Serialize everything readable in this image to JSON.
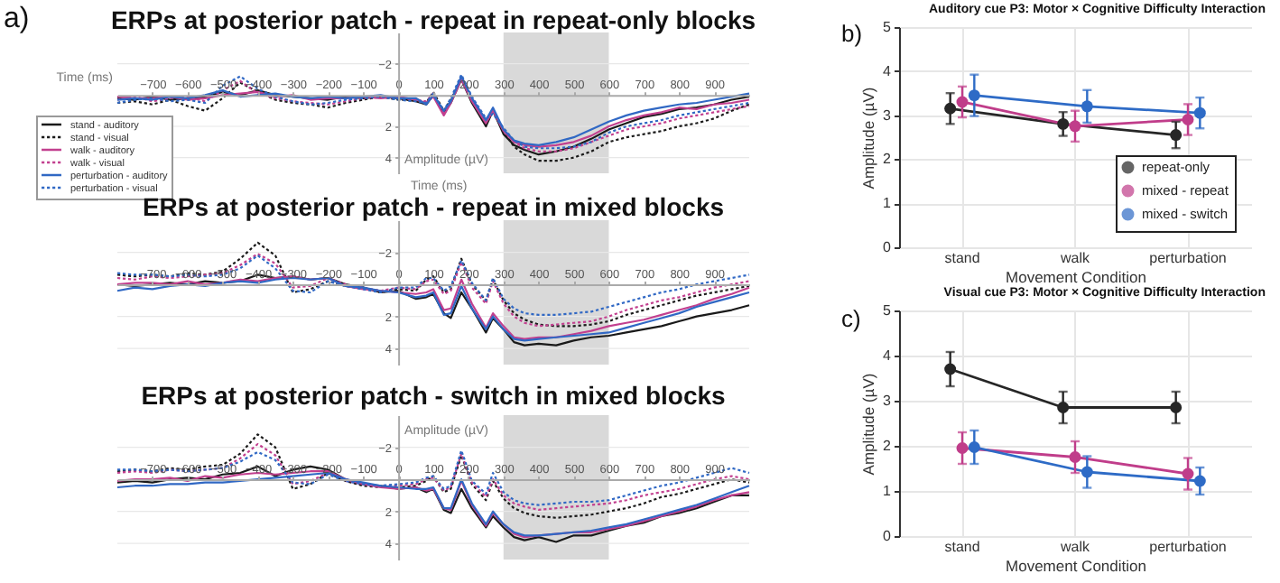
{
  "chart_data": [
    {
      "type": "line",
      "title": "ERPs at posterior patch - repeat in repeat-only blocks",
      "xlabel": "Time (ms)",
      "ylabel": "Amplitude (µV)",
      "x": [
        -800,
        -750,
        -700,
        -650,
        -600,
        -550,
        -500,
        -450,
        -400,
        -350,
        -300,
        -250,
        -200,
        -150,
        -100,
        -50,
        0,
        50,
        80,
        100,
        130,
        150,
        180,
        210,
        250,
        270,
        300,
        330,
        360,
        400,
        450,
        500,
        550,
        600,
        650,
        700,
        750,
        800,
        850,
        900,
        950,
        1000
      ],
      "series": [
        {
          "name": "stand - auditory",
          "color": "#1a1a1a",
          "line_style": "solid",
          "values": [
            0.2,
            0.3,
            0.1,
            0.3,
            0.2,
            0.1,
            -0.2,
            0.0,
            -0.3,
            0.0,
            0.1,
            0.2,
            0.3,
            0.1,
            0.2,
            0.1,
            0.2,
            0.4,
            0.6,
            0.0,
            1.2,
            0.5,
            -1.0,
            0.5,
            2.0,
            1.0,
            2.5,
            3.2,
            3.5,
            3.8,
            3.6,
            3.3,
            2.8,
            2.2,
            1.8,
            1.4,
            1.2,
            0.9,
            0.8,
            0.6,
            0.3,
            0.1
          ]
        },
        {
          "name": "stand - visual",
          "color": "#1a1a1a",
          "line_style": "dotted",
          "values": [
            0.5,
            0.4,
            0.6,
            0.3,
            0.7,
            1.0,
            0.2,
            -0.8,
            -0.2,
            0.3,
            0.5,
            0.6,
            0.8,
            0.5,
            0.3,
            0.1,
            0.3,
            0.3,
            0.5,
            -0.2,
            1.0,
            0.3,
            -1.1,
            0.3,
            1.8,
            1.0,
            2.3,
            3.3,
            3.8,
            4.2,
            4.2,
            4.0,
            3.6,
            3.0,
            2.7,
            2.5,
            2.3,
            2.0,
            1.8,
            1.5,
            1.0,
            0.6
          ]
        },
        {
          "name": "walk - auditory",
          "color": "#c2408f",
          "line_style": "solid",
          "values": [
            0.1,
            0.2,
            0.2,
            0.1,
            0.3,
            0.2,
            0.0,
            -0.1,
            -0.2,
            0.1,
            0.0,
            0.3,
            0.2,
            0.2,
            0.1,
            0.2,
            0.1,
            0.3,
            0.5,
            0.1,
            1.3,
            0.5,
            -1.0,
            0.4,
            1.8,
            1.0,
            2.3,
            3.0,
            3.2,
            3.3,
            3.2,
            3.0,
            2.6,
            2.0,
            1.6,
            1.3,
            1.1,
            0.8,
            0.9,
            0.6,
            0.5,
            0.3
          ]
        },
        {
          "name": "walk - visual",
          "color": "#c2408f",
          "line_style": "dotted",
          "values": [
            0.3,
            0.1,
            0.4,
            0.2,
            0.1,
            0.4,
            -0.3,
            -0.9,
            -0.1,
            0.2,
            0.4,
            0.5,
            0.6,
            0.4,
            0.2,
            0.1,
            0.2,
            0.3,
            0.4,
            -0.1,
            1.1,
            0.4,
            -1.1,
            0.2,
            1.6,
            0.9,
            2.2,
            3.0,
            3.4,
            3.6,
            3.6,
            3.4,
            3.0,
            2.6,
            2.2,
            2.0,
            1.8,
            1.5,
            1.3,
            1.1,
            0.9,
            0.7
          ]
        },
        {
          "name": "perturbation - auditory",
          "color": "#3068c4",
          "line_style": "solid",
          "values": [
            0.3,
            0.2,
            0.3,
            0.1,
            0.2,
            0.0,
            -0.3,
            0.1,
            0.0,
            -0.1,
            0.1,
            0.2,
            0.1,
            0.2,
            0.1,
            0.0,
            0.2,
            0.2,
            0.6,
            0.0,
            1.0,
            0.4,
            -1.2,
            0.2,
            1.6,
            0.8,
            2.2,
            2.9,
            3.1,
            3.2,
            3.0,
            2.7,
            2.2,
            1.7,
            1.3,
            1.0,
            0.8,
            0.6,
            0.5,
            0.3,
            0.1,
            -0.1
          ]
        },
        {
          "name": "perturbation - visual",
          "color": "#3068c4",
          "line_style": "dotted",
          "values": [
            0.5,
            0.3,
            0.2,
            0.4,
            0.3,
            0.5,
            -0.6,
            -1.2,
            -0.4,
            0.1,
            0.4,
            0.6,
            0.5,
            0.3,
            0.2,
            0.1,
            0.3,
            0.4,
            0.5,
            -0.1,
            1.0,
            0.2,
            -1.3,
            0.1,
            1.5,
            1.2,
            2.1,
            2.9,
            3.3,
            3.4,
            3.4,
            3.3,
            3.0,
            2.4,
            2.0,
            1.8,
            1.6,
            1.3,
            1.1,
            0.9,
            0.7,
            0.5
          ]
        }
      ],
      "xlim": [
        -800,
        1000
      ],
      "ylim": [
        5,
        -4
      ],
      "xticks": [
        -700,
        -600,
        -500,
        -400,
        -300,
        -200,
        -100,
        0,
        100,
        200,
        300,
        400,
        500,
        600,
        700,
        800,
        900
      ],
      "yticks": [
        -2,
        2,
        4
      ],
      "grid": "y",
      "bands": [
        {
          "axis": "x",
          "from": 300,
          "to": 600,
          "color": "#d9d9d9"
        }
      ],
      "legend": "bottom left",
      "annotations": [
        "a)"
      ]
    },
    {
      "type": "line",
      "title": "ERPs at posterior patch - repeat in mixed blocks",
      "xlabel": "Time (ms)",
      "x": [
        -800,
        -750,
        -700,
        -650,
        -600,
        -550,
        -500,
        -450,
        -400,
        -350,
        -300,
        -250,
        -200,
        -150,
        -100,
        -50,
        0,
        50,
        80,
        100,
        130,
        150,
        180,
        210,
        250,
        270,
        300,
        330,
        360,
        400,
        450,
        500,
        550,
        600,
        650,
        700,
        750,
        800,
        850,
        900,
        950,
        1000
      ],
      "series": [
        {
          "color": "#1a1a1a",
          "line_style": "solid",
          "values": [
            0.0,
            0.1,
            0.0,
            -0.1,
            0.0,
            -0.2,
            -0.1,
            -0.2,
            -0.6,
            -0.4,
            -0.5,
            -0.3,
            -0.4,
            0.0,
            0.2,
            0.5,
            0.4,
            0.9,
            0.8,
            0.6,
            1.8,
            2.1,
            0.5,
            1.5,
            3.0,
            2.1,
            2.8,
            3.6,
            3.8,
            3.7,
            3.8,
            3.5,
            3.3,
            3.2,
            3.0,
            2.8,
            2.6,
            2.3,
            2.0,
            1.8,
            1.6,
            1.3
          ]
        },
        {
          "color": "#1a1a1a",
          "line_style": "dotted",
          "values": [
            -0.6,
            -0.5,
            -0.6,
            -0.5,
            -0.7,
            -0.6,
            -0.8,
            -1.6,
            -2.6,
            -1.8,
            0.5,
            0.3,
            -0.2,
            0.1,
            0.2,
            0.5,
            0.3,
            0.4,
            -0.3,
            -0.5,
            0.5,
            0.3,
            -1.6,
            0.0,
            1.0,
            -0.3,
            1.0,
            1.8,
            2.2,
            2.5,
            2.6,
            2.6,
            2.5,
            2.3,
            1.9,
            1.6,
            1.3,
            1.0,
            0.7,
            0.5,
            0.3,
            0.1
          ]
        },
        {
          "color": "#c2408f",
          "line_style": "solid",
          "values": [
            0.0,
            -0.1,
            -0.1,
            0.0,
            -0.2,
            0.0,
            -0.1,
            -0.3,
            -0.2,
            -0.4,
            -0.5,
            -0.3,
            -0.4,
            0.1,
            0.3,
            0.4,
            0.5,
            0.6,
            0.5,
            0.3,
            1.6,
            1.5,
            -0.3,
            1.2,
            2.7,
            1.8,
            2.6,
            3.3,
            3.4,
            3.3,
            3.3,
            3.1,
            2.9,
            2.6,
            2.4,
            2.2,
            1.9,
            1.6,
            1.3,
            0.9,
            0.6,
            0.2
          ]
        },
        {
          "color": "#c2408f",
          "line_style": "dotted",
          "values": [
            -0.4,
            -0.3,
            -0.5,
            -0.4,
            -0.5,
            -0.6,
            -0.7,
            -1.2,
            -1.9,
            -1.3,
            0.2,
            0.1,
            -0.4,
            0.0,
            0.2,
            0.4,
            0.2,
            0.3,
            -0.2,
            -0.3,
            0.6,
            0.4,
            -1.4,
            0.2,
            1.2,
            -0.2,
            1.2,
            2.0,
            2.4,
            2.6,
            2.5,
            2.4,
            2.3,
            2.0,
            1.6,
            1.3,
            1.0,
            0.8,
            0.5,
            0.2,
            0.0,
            -0.2
          ]
        },
        {
          "color": "#3068c4",
          "line_style": "solid",
          "values": [
            0.4,
            0.2,
            0.3,
            0.1,
            0.0,
            0.1,
            -0.1,
            -0.2,
            -0.1,
            -0.3,
            -0.4,
            -0.3,
            -0.4,
            0.1,
            0.2,
            0.4,
            0.5,
            0.8,
            0.7,
            0.5,
            1.9,
            1.8,
            0.1,
            1.5,
            2.8,
            2.0,
            2.8,
            3.4,
            3.5,
            3.4,
            3.3,
            3.2,
            3.1,
            3.0,
            2.7,
            2.4,
            2.1,
            1.8,
            1.4,
            1.1,
            0.8,
            0.5
          ]
        },
        {
          "color": "#3068c4",
          "line_style": "dotted",
          "values": [
            -0.7,
            -0.6,
            -0.6,
            -0.5,
            -0.6,
            -0.5,
            -0.6,
            -1.0,
            -1.8,
            -1.0,
            0.4,
            0.5,
            -0.2,
            0.1,
            0.3,
            0.5,
            0.2,
            0.2,
            -0.4,
            -0.4,
            0.4,
            0.1,
            -1.5,
            -0.1,
            1.0,
            -0.4,
            0.9,
            1.5,
            1.8,
            1.9,
            1.9,
            1.8,
            1.7,
            1.4,
            1.1,
            0.8,
            0.5,
            0.3,
            0.0,
            -0.2,
            -0.4,
            -0.6
          ]
        }
      ],
      "xlim": [
        -800,
        1000
      ],
      "ylim": [
        5,
        -4
      ],
      "xticks": [
        -700,
        -600,
        -500,
        -400,
        -300,
        -200,
        -100,
        0,
        100,
        200,
        300,
        400,
        500,
        600,
        700,
        800,
        900
      ],
      "yticks": [
        -2,
        2,
        4
      ],
      "grid": "y",
      "bands": [
        {
          "axis": "x",
          "from": 300,
          "to": 600,
          "color": "#d9d9d9"
        }
      ]
    },
    {
      "type": "line",
      "title": "ERPs at posterior patch - switch in mixed blocks",
      "ylabel": "Amplitude (µV)",
      "x": [
        -800,
        -750,
        -700,
        -650,
        -600,
        -550,
        -500,
        -450,
        -400,
        -350,
        -300,
        -250,
        -200,
        -150,
        -100,
        -50,
        0,
        50,
        80,
        100,
        130,
        150,
        180,
        210,
        250,
        270,
        300,
        330,
        360,
        400,
        450,
        500,
        550,
        600,
        650,
        700,
        750,
        800,
        850,
        900,
        950,
        1000
      ],
      "series": [
        {
          "color": "#1a1a1a",
          "line_style": "solid",
          "values": [
            0.2,
            0.1,
            0.2,
            0.0,
            -0.1,
            0.0,
            -0.3,
            -0.4,
            -0.8,
            -0.2,
            -0.6,
            -0.8,
            -0.6,
            0.0,
            0.3,
            0.4,
            0.6,
            0.5,
            0.8,
            0.6,
            1.9,
            2.1,
            0.6,
            1.8,
            3.0,
            2.3,
            3.0,
            3.6,
            3.8,
            3.6,
            3.9,
            3.5,
            3.5,
            3.2,
            2.9,
            2.7,
            2.3,
            2.1,
            1.8,
            1.4,
            1.0,
            1.0
          ]
        },
        {
          "color": "#1a1a1a",
          "line_style": "dotted",
          "values": [
            -0.5,
            -0.6,
            -0.5,
            -0.7,
            -0.6,
            -0.8,
            -0.9,
            -1.6,
            -2.8,
            -2.0,
            0.6,
            0.3,
            -0.4,
            0.1,
            0.4,
            0.5,
            0.5,
            0.4,
            0.1,
            -0.2,
            0.8,
            0.6,
            -1.5,
            0.3,
            1.3,
            0.1,
            1.2,
            1.8,
            2.1,
            2.3,
            2.4,
            2.3,
            2.2,
            2.0,
            1.8,
            1.5,
            1.1,
            0.9,
            0.6,
            0.3,
            0.0,
            0.2
          ]
        },
        {
          "color": "#c2408f",
          "line_style": "solid",
          "values": [
            0.1,
            0.0,
            0.0,
            -0.1,
            0.1,
            -0.2,
            -0.1,
            -0.3,
            -0.4,
            -0.3,
            -0.4,
            -0.5,
            -0.5,
            0.0,
            0.3,
            0.5,
            0.6,
            0.5,
            0.7,
            0.6,
            1.8,
            1.9,
            0.1,
            1.6,
            2.9,
            2.1,
            2.8,
            3.4,
            3.6,
            3.5,
            3.4,
            3.3,
            3.3,
            3.1,
            2.9,
            2.6,
            2.3,
            2.0,
            1.7,
            1.3,
            1.0,
            0.8
          ]
        },
        {
          "color": "#c2408f",
          "line_style": "dotted",
          "values": [
            -0.4,
            -0.5,
            -0.4,
            -0.6,
            -0.5,
            -0.6,
            -0.7,
            -1.3,
            -2.2,
            -1.5,
            0.3,
            0.1,
            -0.4,
            0.1,
            0.3,
            0.4,
            0.4,
            0.3,
            0.0,
            -0.1,
            0.7,
            0.5,
            -1.6,
            0.2,
            1.1,
            0.0,
            1.0,
            1.5,
            1.7,
            1.9,
            1.8,
            1.7,
            1.6,
            1.5,
            1.3,
            1.0,
            0.8,
            0.6,
            0.3,
            0.0,
            -0.2,
            0.0
          ]
        },
        {
          "color": "#3068c4",
          "line_style": "solid",
          "values": [
            0.5,
            0.4,
            0.4,
            0.3,
            0.3,
            0.2,
            0.2,
            0.1,
            0.0,
            -0.1,
            -0.2,
            -0.3,
            -0.4,
            0.0,
            0.2,
            0.4,
            0.5,
            0.6,
            0.6,
            0.5,
            1.8,
            1.8,
            0.0,
            1.5,
            2.8,
            2.0,
            2.8,
            3.3,
            3.5,
            3.5,
            3.4,
            3.3,
            3.2,
            3.0,
            2.8,
            2.5,
            2.2,
            1.9,
            1.6,
            1.2,
            0.8,
            0.4
          ]
        },
        {
          "color": "#3068c4",
          "line_style": "dotted",
          "values": [
            -0.6,
            -0.6,
            -0.5,
            -0.6,
            -0.5,
            -0.6,
            -0.7,
            -1.1,
            -1.7,
            -1.2,
            0.2,
            0.3,
            -0.3,
            0.1,
            0.3,
            0.4,
            0.3,
            0.2,
            -0.1,
            -0.2,
            0.6,
            0.4,
            -1.8,
            0.1,
            0.9,
            -0.4,
            0.8,
            1.3,
            1.5,
            1.6,
            1.5,
            1.4,
            1.4,
            1.3,
            1.0,
            0.7,
            0.4,
            0.2,
            -0.1,
            -0.4,
            -0.7,
            -0.4
          ]
        }
      ],
      "xlim": [
        -800,
        1000
      ],
      "ylim": [
        5,
        -4
      ],
      "xticks": [
        -700,
        -600,
        -500,
        -400,
        -300,
        -200,
        -100,
        0,
        100,
        200,
        300,
        400,
        500,
        600,
        700,
        800,
        900
      ],
      "yticks": [
        -2,
        2,
        4
      ],
      "grid": "y",
      "bands": [
        {
          "axis": "x",
          "from": 300,
          "to": 600,
          "color": "#d9d9d9"
        }
      ]
    },
    {
      "type": "line",
      "title": "Auditory cue P3: Motor × Cognitive Difficulty Interaction",
      "xlabel": "Movement Condition",
      "ylabel": "Amplitude (µV)",
      "categories": [
        "stand",
        "walk",
        "perturbation"
      ],
      "series": [
        {
          "name": "repeat-only",
          "color": "#262626",
          "values": [
            3.15,
            2.8,
            2.55
          ],
          "errors": [
            0.35,
            0.27,
            0.3
          ]
        },
        {
          "name": "mixed - repeat",
          "color": "#c03d8a",
          "values": [
            3.3,
            2.75,
            2.9
          ],
          "errors": [
            0.35,
            0.35,
            0.35
          ]
        },
        {
          "name": "mixed - switch",
          "color": "#2e6bc6",
          "values": [
            3.45,
            3.2,
            3.05
          ],
          "errors": [
            0.47,
            0.37,
            0.35
          ]
        }
      ],
      "ylim": [
        0,
        5
      ],
      "yticks": [
        0,
        1,
        2,
        3,
        4,
        5
      ],
      "grid": true,
      "legend": "bottom right",
      "marker": "circle",
      "annotations": [
        "b)"
      ]
    },
    {
      "type": "line",
      "title": "Visual cue P3: Motor × Cognitive Difficulty Interaction",
      "xlabel": "Movement Condition",
      "ylabel": "Amplitude (µV)",
      "categories": [
        "stand",
        "walk",
        "perturbation"
      ],
      "series": [
        {
          "color": "#262626",
          "values": [
            3.7,
            2.85,
            2.85
          ],
          "errors": [
            0.38,
            0.35,
            0.35
          ]
        },
        {
          "color": "#c03d8a",
          "values": [
            1.95,
            1.75,
            1.38
          ],
          "errors": [
            0.35,
            0.35,
            0.35
          ]
        },
        {
          "color": "#2e6bc6",
          "values": [
            1.97,
            1.42,
            1.22
          ],
          "errors": [
            0.37,
            0.35,
            0.3
          ]
        }
      ],
      "ylim": [
        0,
        5
      ],
      "yticks": [
        0,
        1,
        2,
        3,
        4,
        5
      ],
      "grid": true,
      "marker": "circle",
      "annotations": [
        "c)"
      ]
    }
  ]
}
